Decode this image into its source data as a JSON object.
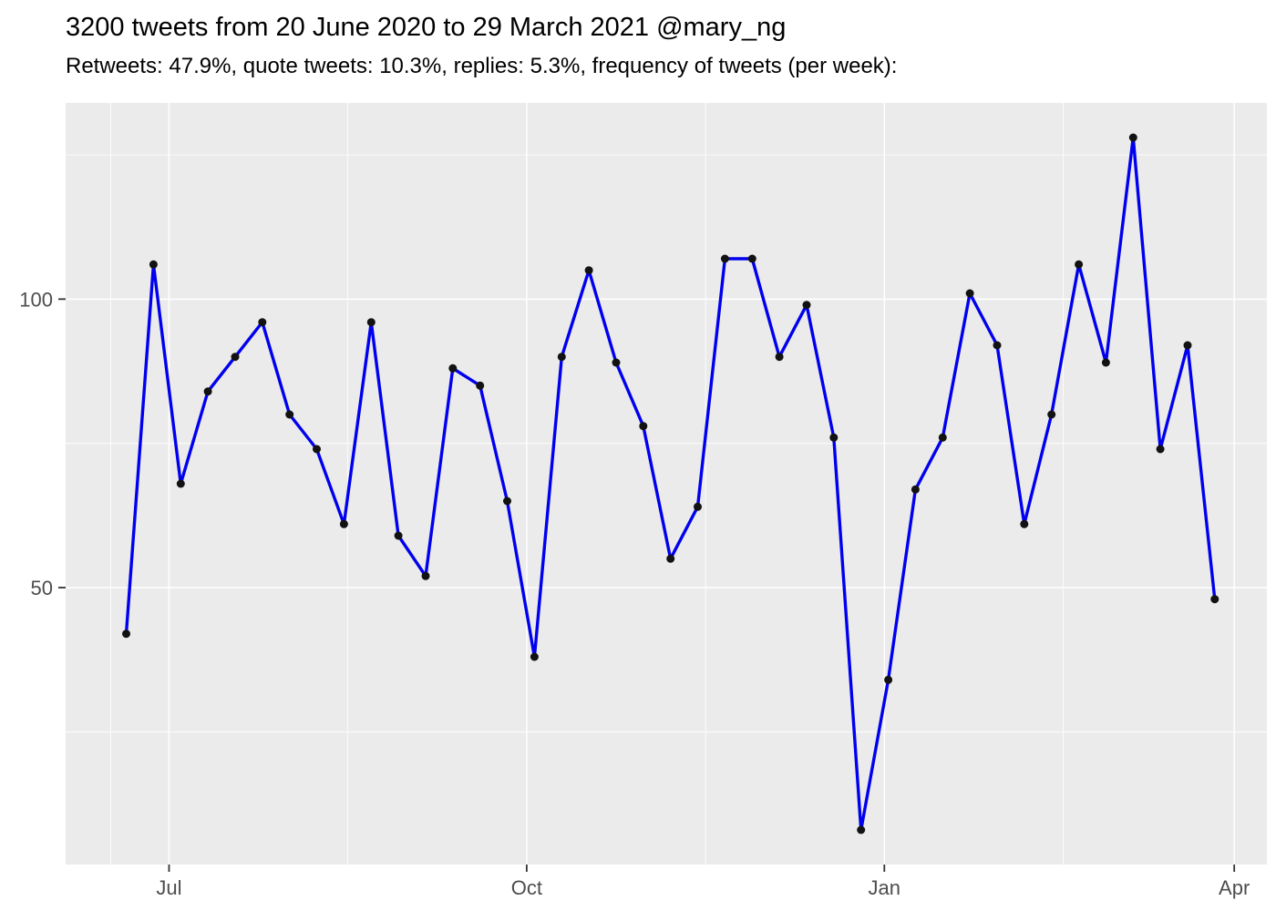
{
  "title": "3200 tweets from 20 June 2020 to 29 March 2021 @mary_ng",
  "subtitle": "Retweets: 47.9%, quote tweets: 10.3%, replies: 5.3%, frequency of tweets (per week):",
  "chart_data": {
    "type": "line",
    "series_name": "frequency of tweets per week",
    "x": [
      "2020-06-20",
      "2020-06-27",
      "2020-07-04",
      "2020-07-11",
      "2020-07-18",
      "2020-07-25",
      "2020-08-01",
      "2020-08-08",
      "2020-08-15",
      "2020-08-22",
      "2020-08-29",
      "2020-09-05",
      "2020-09-12",
      "2020-09-19",
      "2020-09-26",
      "2020-10-03",
      "2020-10-10",
      "2020-10-17",
      "2020-10-24",
      "2020-10-31",
      "2020-11-07",
      "2020-11-14",
      "2020-11-21",
      "2020-11-28",
      "2020-12-05",
      "2020-12-12",
      "2020-12-19",
      "2020-12-26",
      "2021-01-02",
      "2021-01-09",
      "2021-01-16",
      "2021-01-23",
      "2021-01-30",
      "2021-02-06",
      "2021-02-13",
      "2021-02-20",
      "2021-02-27",
      "2021-03-06",
      "2021-03-13",
      "2021-03-20",
      "2021-03-27"
    ],
    "values": [
      42,
      106,
      68,
      84,
      90,
      96,
      80,
      74,
      61,
      96,
      59,
      52,
      88,
      85,
      65,
      38,
      90,
      105,
      89,
      78,
      55,
      64,
      107,
      107,
      90,
      99,
      76,
      8,
      34,
      67,
      76,
      101,
      92,
      61,
      80,
      106,
      89,
      128,
      74,
      92,
      48
    ],
    "title": "3200 tweets from 20 June 2020 to 29 March 2021 @mary_ng",
    "xlabel": "",
    "ylabel": "",
    "ylim": [
      2,
      134
    ],
    "y_major_ticks": [
      50,
      100
    ],
    "y_minor_ticks": [
      25,
      75,
      125
    ],
    "y_tick_labels": [
      "50",
      "100"
    ],
    "x_ticks": [
      {
        "label": "Jul",
        "t": 11
      },
      {
        "label": "Oct",
        "t": 103
      },
      {
        "label": "Jan",
        "t": 195
      },
      {
        "label": "Apr",
        "t": 285
      }
    ],
    "x_minor_ticks_t": [
      -4,
      57,
      149,
      241
    ],
    "grid": "on",
    "legend": "none",
    "colors": {
      "panel_bg": "#EBEBEB",
      "grid": "#FFFFFF",
      "line": "#0000EE",
      "point": "#121212",
      "tick_label": "#4D4D4D",
      "tick_mark": "#333333",
      "title_text": "#000000"
    }
  }
}
